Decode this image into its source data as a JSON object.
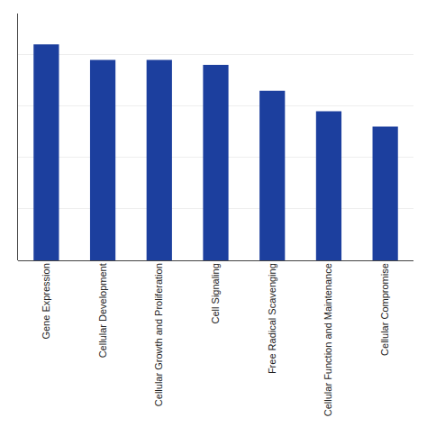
{
  "chart_data": {
    "type": "bar",
    "categories": [
      "Gene Expression",
      "Cellular Development",
      "Cellular Growth and Proliferation",
      "Cell Signaling",
      "Free Radical Scavenging",
      "Cellular Function and Maintenance",
      "Cellular Compromise"
    ],
    "values": [
      42,
      39,
      39,
      38,
      33,
      29,
      26
    ],
    "color": "#1c3f9e",
    "ylim": [
      0,
      48
    ],
    "yticks": [
      10,
      20,
      30,
      40
    ],
    "grid": true,
    "tick_labels": "x"
  }
}
